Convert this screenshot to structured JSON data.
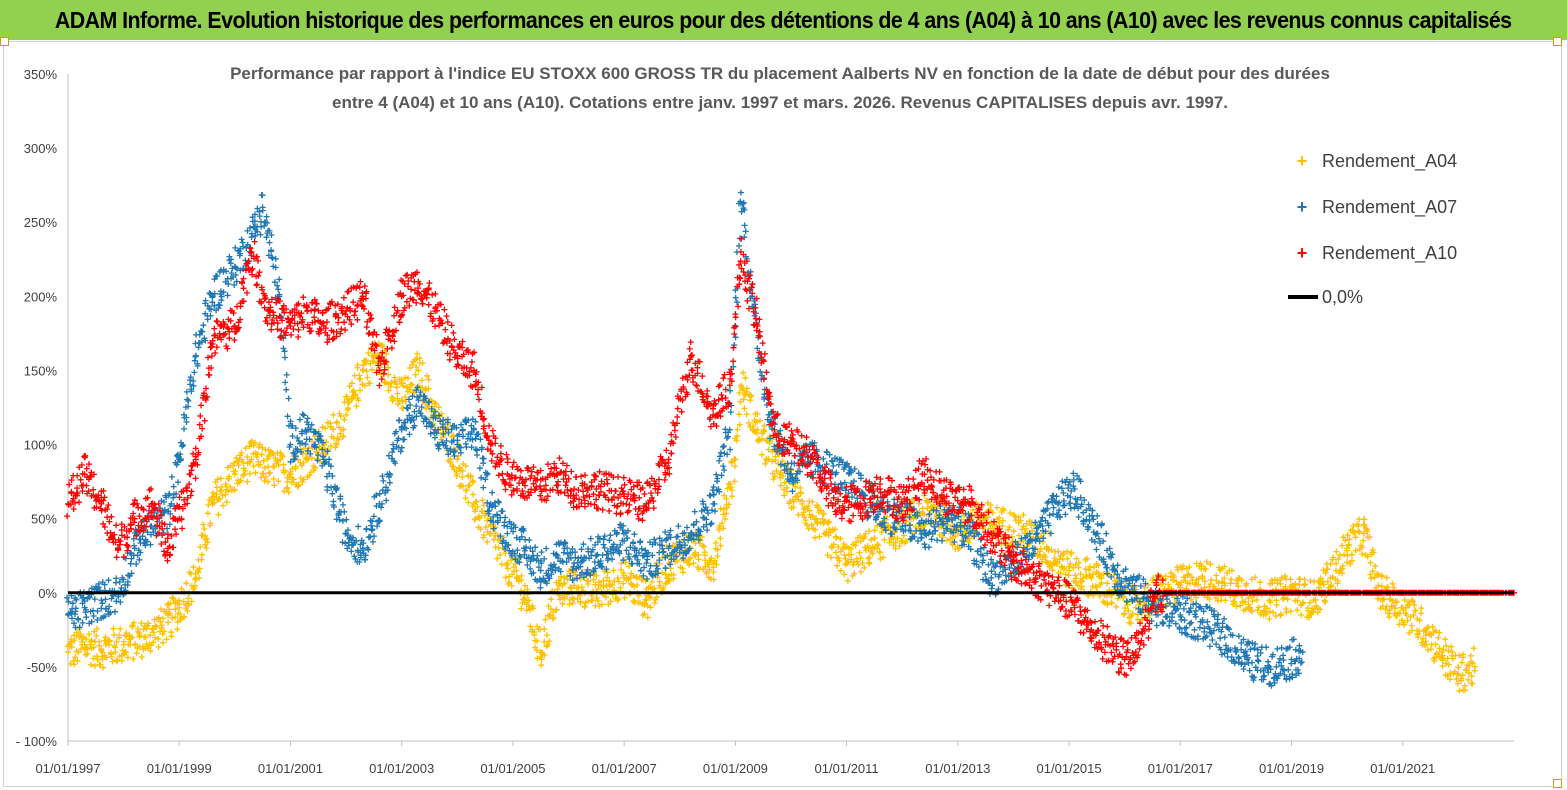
{
  "header": {
    "title": "ADAM Informe. Evolution historique des performances en euros pour des détentions de 4 ans (A04) à 10 ans (A10) avec les revenus connus capitalisés"
  },
  "chart_data": {
    "type": "scatter",
    "title_line1": "Performance par rapport à l'indice EU STOXX 600 GROSS TR  du placement Aalberts NV en fonction de la date de début pour des durées",
    "title_line2": "entre 4 (A04) et 10 ans (A10). Cotations entre janv. 1997 et mars. 2026. Revenus CAPITALISES depuis avr. 1997.",
    "xlabel": "",
    "ylabel": "",
    "x_range": [
      1997.0,
      2023.0
    ],
    "ylim": [
      -100,
      350
    ],
    "y_ticks": [
      -100,
      -50,
      0,
      50,
      100,
      150,
      200,
      250,
      300,
      350
    ],
    "y_tick_labels": [
      "- 100%",
      "-50%",
      "0%",
      "50%",
      "100%",
      "150%",
      "200%",
      "250%",
      "300%",
      "350%"
    ],
    "x_ticks": [
      1997,
      1999,
      2001,
      2003,
      2005,
      2007,
      2009,
      2011,
      2013,
      2015,
      2017,
      2019,
      2021
    ],
    "x_tick_labels": [
      "01/01/1997",
      "01/01/1999",
      "01/01/2001",
      "01/01/2003",
      "01/01/2005",
      "01/01/2007",
      "01/01/2009",
      "01/01/2011",
      "01/01/2013",
      "01/01/2015",
      "01/01/2017",
      "01/01/2019",
      "01/01/2021"
    ],
    "legend_position": "top-right",
    "series": [
      {
        "name": "Rendement_A04",
        "color": "#ffc000",
        "marker": "+",
        "x": [
          1997.0,
          1997.3,
          1997.6,
          1998.0,
          1998.4,
          1998.8,
          1999.0,
          1999.3,
          1999.6,
          2000.0,
          2000.3,
          2000.6,
          2001.0,
          2001.3,
          2001.6,
          2002.0,
          2002.3,
          2002.6,
          2003.0,
          2003.3,
          2003.6,
          2004.0,
          2004.3,
          2004.6,
          2004.9,
          2005.2,
          2005.5,
          2005.8,
          2006.1,
          2006.5,
          2007.0,
          2007.4,
          2007.8,
          2008.2,
          2008.6,
          2009.0,
          2009.1,
          2009.4,
          2009.8,
          2010.2,
          2010.6,
          2011.0,
          2011.4,
          2011.8,
          2012.2,
          2012.6,
          2013.0,
          2013.4,
          2013.8,
          2014.2,
          2014.6,
          2015.0,
          2015.4,
          2015.8,
          2016.2,
          2016.6,
          2017.0,
          2017.4,
          2017.8,
          2018.2,
          2018.6,
          2019.0,
          2019.4,
          2019.8,
          2020.0,
          2020.3,
          2020.6,
          2021.0,
          2021.4,
          2021.7,
          2022.0,
          2022.3
        ],
        "values": [
          -40,
          -35,
          -38,
          -35,
          -30,
          -20,
          -10,
          10,
          60,
          80,
          90,
          85,
          80,
          90,
          100,
          120,
          150,
          160,
          130,
          150,
          120,
          90,
          60,
          40,
          20,
          0,
          -40,
          0,
          5,
          0,
          10,
          -5,
          20,
          30,
          20,
          90,
          140,
          110,
          80,
          60,
          40,
          20,
          30,
          40,
          50,
          55,
          40,
          50,
          45,
          40,
          30,
          15,
          10,
          0,
          -10,
          0,
          5,
          10,
          5,
          0,
          -5,
          0,
          -5,
          15,
          30,
          40,
          0,
          -10,
          -25,
          -40,
          -55,
          -50
        ]
      },
      {
        "name": "Rendement_A07",
        "color": "#1f77b4",
        "marker": "+",
        "x": [
          1997.0,
          1997.3,
          1997.6,
          1997.9,
          1998.2,
          1998.5,
          1998.8,
          1999.0,
          1999.3,
          1999.6,
          2000.0,
          2000.3,
          2000.5,
          2000.8,
          2001.0,
          2001.3,
          2001.6,
          2002.0,
          2002.3,
          2002.6,
          2003.0,
          2003.3,
          2003.6,
          2004.0,
          2004.3,
          2004.6,
          2004.9,
          2005.2,
          2005.5,
          2005.8,
          2006.1,
          2006.5,
          2007.0,
          2007.4,
          2007.8,
          2008.2,
          2008.6,
          2008.9,
          2009.1,
          2009.3,
          2009.6,
          2010.0,
          2010.4,
          2010.8,
          2011.2,
          2011.6,
          2012.0,
          2012.4,
          2012.8,
          2013.2,
          2013.6,
          2014.0,
          2014.4,
          2014.8,
          2015.1,
          2015.5,
          2015.9,
          2016.2,
          2016.6,
          2017.0,
          2017.4,
          2017.8,
          2018.2,
          2018.6,
          2019.0,
          2019.2
        ],
        "values": [
          -15,
          -10,
          -5,
          0,
          30,
          45,
          55,
          90,
          160,
          200,
          220,
          240,
          260,
          200,
          100,
          110,
          90,
          40,
          30,
          60,
          110,
          130,
          110,
          100,
          110,
          60,
          40,
          30,
          15,
          25,
          20,
          25,
          35,
          20,
          30,
          40,
          60,
          110,
          270,
          200,
          120,
          80,
          90,
          80,
          70,
          55,
          50,
          40,
          50,
          40,
          10,
          20,
          35,
          60,
          70,
          40,
          10,
          0,
          -10,
          -15,
          -20,
          -30,
          -45,
          -50,
          -45,
          -40
        ]
      },
      {
        "name": "Rendement_A10",
        "color": "#ff0000",
        "marker": "+",
        "x": [
          1997.0,
          1997.3,
          1997.6,
          1997.9,
          1998.2,
          1998.5,
          1998.8,
          1999.0,
          1999.3,
          1999.6,
          2000.0,
          2000.3,
          2000.6,
          2001.0,
          2001.3,
          2001.6,
          2002.0,
          2002.3,
          2002.6,
          2003.0,
          2003.3,
          2003.6,
          2004.0,
          2004.3,
          2004.6,
          2004.9,
          2005.2,
          2005.5,
          2005.8,
          2006.1,
          2006.5,
          2007.0,
          2007.4,
          2007.8,
          2008.2,
          2008.6,
          2008.9,
          2009.1,
          2009.4,
          2009.7,
          2010.0,
          2010.4,
          2010.8,
          2011.2,
          2011.6,
          2012.0,
          2012.4,
          2012.8,
          2013.2,
          2013.6,
          2014.0,
          2014.4,
          2014.8,
          2015.1,
          2015.4,
          2015.7,
          2016.0,
          2016.2,
          2016.6,
          2017.0,
          2018.0,
          2019.0,
          2020.0,
          2021.0,
          2022.0,
          2023.0
        ],
        "values": [
          60,
          80,
          60,
          30,
          50,
          60,
          30,
          50,
          90,
          170,
          180,
          230,
          190,
          180,
          190,
          180,
          190,
          200,
          150,
          200,
          210,
          190,
          160,
          150,
          100,
          80,
          75,
          70,
          80,
          70,
          70,
          65,
          60,
          90,
          160,
          120,
          140,
          230,
          180,
          110,
          100,
          90,
          60,
          60,
          70,
          60,
          80,
          65,
          60,
          40,
          20,
          10,
          0,
          -10,
          -25,
          -35,
          -45,
          -40,
          0,
          0,
          0,
          0,
          0,
          0,
          0,
          0
        ]
      },
      {
        "name": "0,0%",
        "color": "#000000",
        "marker": "line",
        "x": [
          1997.0,
          2023.0
        ],
        "values": [
          0,
          0
        ]
      }
    ]
  }
}
